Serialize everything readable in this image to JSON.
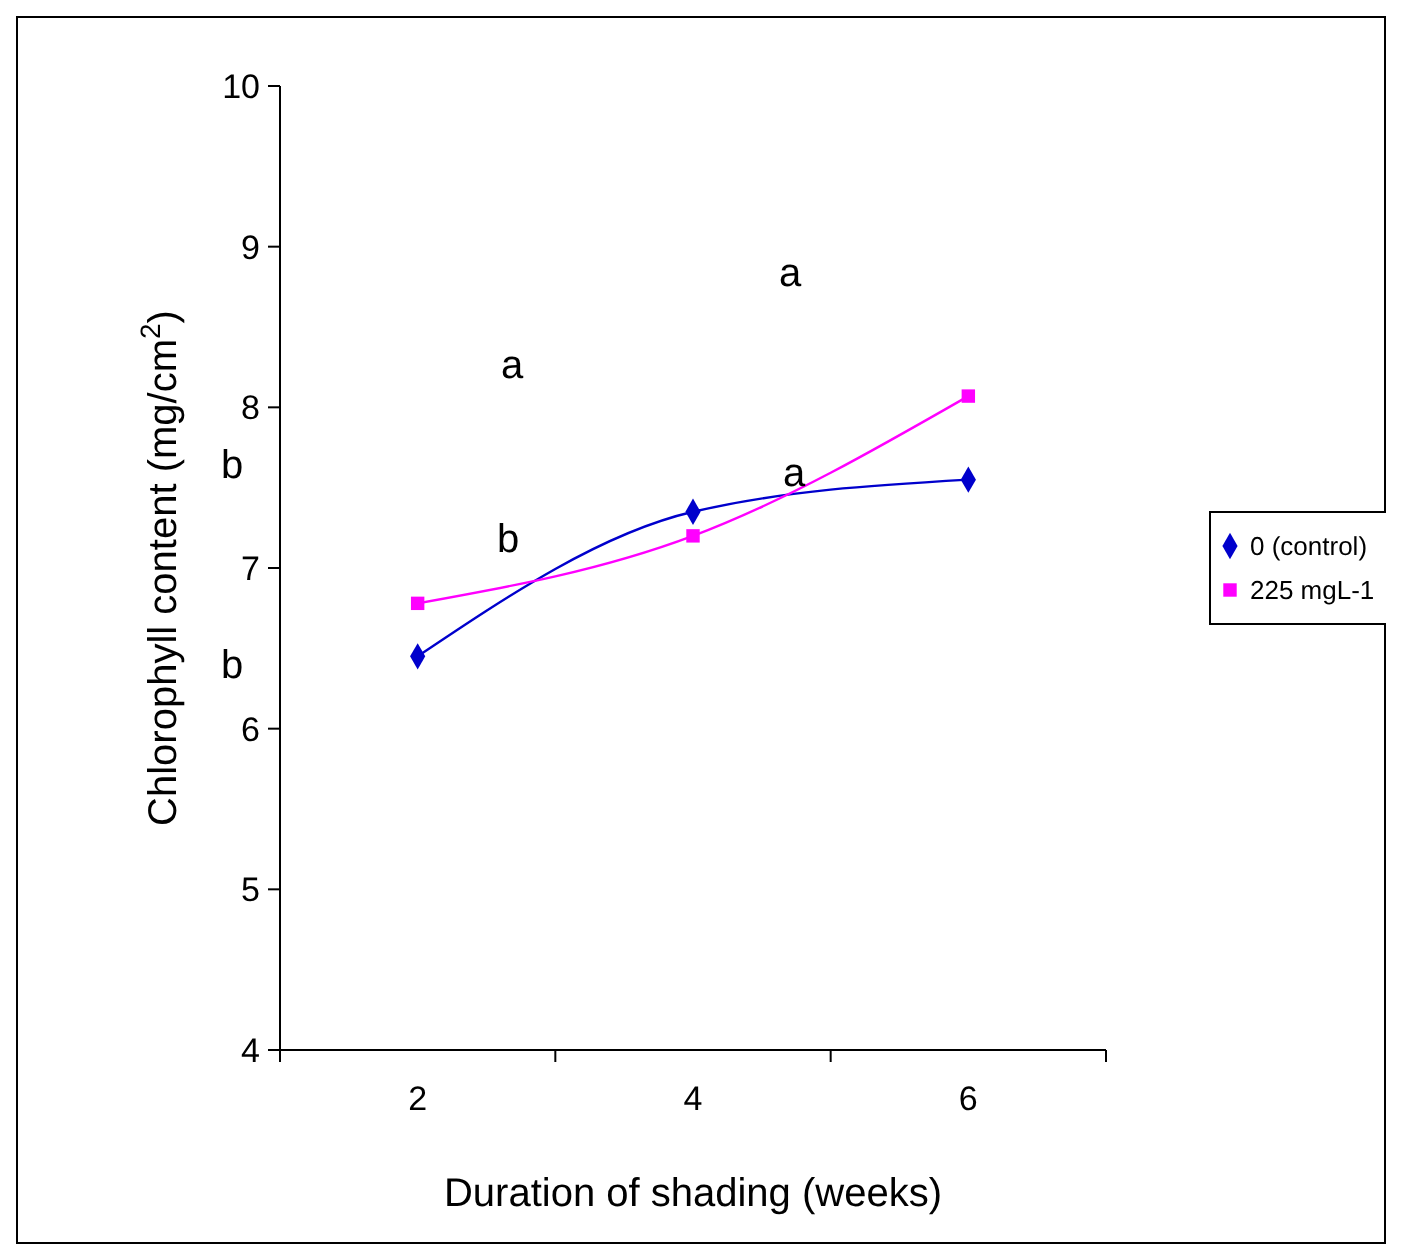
{
  "chart_data": {
    "type": "line",
    "xlabel": "Duration of shading (weeks)",
    "ylabel": "Chlorophyll content (mg/cm$^{2}$)",
    "categories": [
      "2",
      "4",
      "6"
    ],
    "ylim": [
      4,
      10
    ],
    "yticks": [
      4,
      5,
      6,
      7,
      8,
      9,
      10
    ],
    "grid": false,
    "legend": "right",
    "series": [
      {
        "name": "0 (control)",
        "color": "#0000cc",
        "marker": "diamond",
        "values": [
          6.45,
          7.35,
          7.55
        ]
      },
      {
        "name": "225 mgL-1",
        "color": "#ff00ff",
        "marker": "square",
        "values": [
          6.78,
          7.2,
          8.07
        ]
      }
    ],
    "annotations": [
      "a",
      "b",
      "b",
      "a",
      "a",
      "b"
    ]
  }
}
